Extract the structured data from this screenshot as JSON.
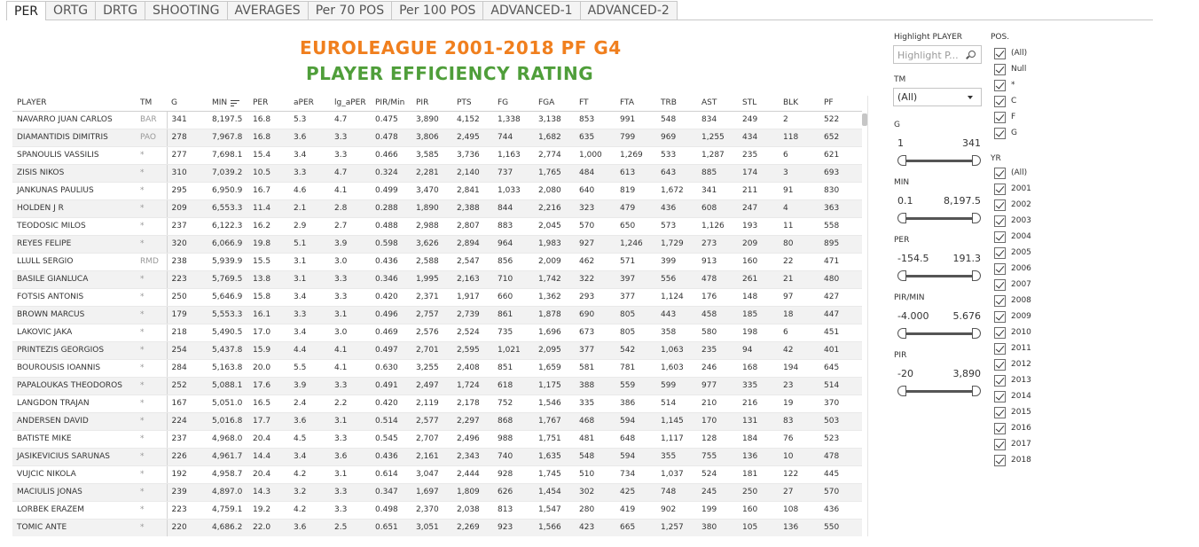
{
  "tabs": [
    {
      "label": "PER",
      "active": true
    },
    {
      "label": "ORTG",
      "active": false
    },
    {
      "label": "DRTG",
      "active": false
    },
    {
      "label": "SHOOTING",
      "active": false
    },
    {
      "label": "AVERAGES",
      "active": false
    },
    {
      "label": "Per 70 POS",
      "active": false
    },
    {
      "label": "Per 100 POS",
      "active": false
    },
    {
      "label": "ADVANCED-1",
      "active": false
    },
    {
      "label": "ADVANCED-2",
      "active": false
    }
  ],
  "title": {
    "line1": "EUROLEAGUE 2001-2018 PF G4",
    "line2": "PLAYER EFFICIENCY RATING",
    "line1_color": "#f07f1e",
    "line2_color": "#4f9e3a"
  },
  "table": {
    "columns": [
      "PLAYER",
      "TM",
      "G",
      "MIN",
      "PER",
      "aPER",
      "lg_aPER",
      "PIR/Min",
      "PIR",
      "PTS",
      "FG",
      "FGA",
      "FT",
      "FTA",
      "TRB",
      "AST",
      "STL",
      "BLK",
      "PF"
    ],
    "sorted_column": "MIN",
    "rows": [
      [
        "NAVARRO JUAN CARLOS",
        "BAR",
        "341",
        "8,197.5",
        "16.8",
        "5.3",
        "4.7",
        "0.475",
        "3,890",
        "4,152",
        "1,338",
        "3,138",
        "853",
        "991",
        "548",
        "834",
        "249",
        "2",
        "522"
      ],
      [
        "DIAMANTIDIS DIMITRIS",
        "PAO",
        "278",
        "7,967.8",
        "16.8",
        "3.6",
        "3.3",
        "0.478",
        "3,806",
        "2,495",
        "744",
        "1,682",
        "635",
        "799",
        "969",
        "1,255",
        "434",
        "118",
        "652"
      ],
      [
        "SPANOULIS VASSILIS",
        "*",
        "277",
        "7,698.1",
        "15.4",
        "3.4",
        "3.3",
        "0.466",
        "3,585",
        "3,736",
        "1,163",
        "2,774",
        "1,000",
        "1,269",
        "533",
        "1,287",
        "235",
        "6",
        "621"
      ],
      [
        "ZISIS NIKOS",
        "*",
        "310",
        "7,039.2",
        "10.5",
        "3.3",
        "4.7",
        "0.324",
        "2,281",
        "2,140",
        "737",
        "1,765",
        "484",
        "613",
        "643",
        "885",
        "174",
        "3",
        "693"
      ],
      [
        "JANKUNAS PAULIUS",
        "*",
        "295",
        "6,950.9",
        "16.7",
        "4.6",
        "4.1",
        "0.499",
        "3,470",
        "2,841",
        "1,033",
        "2,080",
        "640",
        "819",
        "1,672",
        "341",
        "211",
        "91",
        "830"
      ],
      [
        "HOLDEN J R",
        "*",
        "209",
        "6,553.3",
        "11.4",
        "2.1",
        "2.8",
        "0.288",
        "1,890",
        "2,388",
        "844",
        "2,216",
        "323",
        "479",
        "436",
        "608",
        "247",
        "4",
        "363"
      ],
      [
        "TEODOSIC MILOS",
        "*",
        "237",
        "6,122.3",
        "16.2",
        "2.9",
        "2.7",
        "0.488",
        "2,988",
        "2,807",
        "883",
        "2,045",
        "570",
        "650",
        "573",
        "1,126",
        "193",
        "11",
        "558"
      ],
      [
        "REYES FELIPE",
        "*",
        "320",
        "6,066.9",
        "19.8",
        "5.1",
        "3.9",
        "0.598",
        "3,626",
        "2,894",
        "964",
        "1,983",
        "927",
        "1,246",
        "1,729",
        "273",
        "209",
        "80",
        "895"
      ],
      [
        "LLULL SERGIO",
        "RMD",
        "238",
        "5,939.9",
        "15.5",
        "3.1",
        "3.0",
        "0.436",
        "2,588",
        "2,547",
        "856",
        "2,009",
        "462",
        "571",
        "399",
        "913",
        "160",
        "22",
        "471"
      ],
      [
        "BASILE GIANLUCA",
        "*",
        "223",
        "5,769.5",
        "13.8",
        "3.1",
        "3.3",
        "0.346",
        "1,995",
        "2,163",
        "710",
        "1,742",
        "322",
        "397",
        "556",
        "478",
        "261",
        "21",
        "480"
      ],
      [
        "FOTSIS ANTONIS",
        "*",
        "250",
        "5,646.9",
        "15.8",
        "3.4",
        "3.3",
        "0.420",
        "2,371",
        "1,917",
        "660",
        "1,362",
        "293",
        "377",
        "1,124",
        "176",
        "148",
        "97",
        "427"
      ],
      [
        "BROWN MARCUS",
        "*",
        "179",
        "5,553.3",
        "16.1",
        "3.3",
        "3.1",
        "0.496",
        "2,757",
        "2,739",
        "861",
        "1,878",
        "690",
        "805",
        "443",
        "458",
        "185",
        "18",
        "447"
      ],
      [
        "LAKOVIC JAKA",
        "*",
        "218",
        "5,490.5",
        "17.0",
        "3.4",
        "3.0",
        "0.469",
        "2,576",
        "2,524",
        "735",
        "1,696",
        "673",
        "805",
        "358",
        "580",
        "198",
        "6",
        "451"
      ],
      [
        "PRINTEZIS GEORGIOS",
        "*",
        "254",
        "5,437.8",
        "15.9",
        "4.4",
        "4.1",
        "0.497",
        "2,701",
        "2,595",
        "1,021",
        "2,095",
        "377",
        "542",
        "1,063",
        "235",
        "94",
        "42",
        "401"
      ],
      [
        "BOUROUSIS IOANNIS",
        "*",
        "284",
        "5,163.8",
        "20.0",
        "5.5",
        "4.1",
        "0.630",
        "3,255",
        "2,408",
        "851",
        "1,659",
        "581",
        "781",
        "1,603",
        "246",
        "168",
        "194",
        "645"
      ],
      [
        "PAPALOUKAS THEODOROS",
        "*",
        "252",
        "5,088.1",
        "17.6",
        "3.9",
        "3.3",
        "0.491",
        "2,497",
        "1,724",
        "618",
        "1,175",
        "388",
        "559",
        "599",
        "977",
        "335",
        "23",
        "514"
      ],
      [
        "LANGDON TRAJAN",
        "*",
        "167",
        "5,051.0",
        "16.5",
        "2.4",
        "2.2",
        "0.420",
        "2,119",
        "2,178",
        "752",
        "1,546",
        "335",
        "386",
        "514",
        "210",
        "216",
        "19",
        "370"
      ],
      [
        "ANDERSEN DAVID",
        "*",
        "224",
        "5,016.8",
        "17.7",
        "3.6",
        "3.1",
        "0.514",
        "2,577",
        "2,297",
        "868",
        "1,767",
        "468",
        "594",
        "1,145",
        "170",
        "131",
        "83",
        "503"
      ],
      [
        "BATISTE MIKE",
        "*",
        "237",
        "4,968.0",
        "20.4",
        "4.5",
        "3.3",
        "0.545",
        "2,707",
        "2,496",
        "988",
        "1,751",
        "481",
        "648",
        "1,117",
        "128",
        "184",
        "76",
        "523"
      ],
      [
        "JASIKEVICIUS SARUNAS",
        "*",
        "226",
        "4,961.7",
        "14.4",
        "3.4",
        "3.6",
        "0.436",
        "2,161",
        "2,343",
        "740",
        "1,635",
        "548",
        "594",
        "355",
        "755",
        "136",
        "10",
        "478"
      ],
      [
        "VUJCIC NIKOLA",
        "*",
        "192",
        "4,958.7",
        "20.4",
        "4.2",
        "3.1",
        "0.614",
        "3,047",
        "2,444",
        "928",
        "1,745",
        "510",
        "734",
        "1,037",
        "524",
        "181",
        "122",
        "445"
      ],
      [
        "MACIULIS JONAS",
        "*",
        "239",
        "4,897.0",
        "14.3",
        "3.2",
        "3.3",
        "0.347",
        "1,697",
        "1,809",
        "626",
        "1,454",
        "302",
        "425",
        "748",
        "245",
        "250",
        "27",
        "570"
      ],
      [
        "LORBEK ERAZEM",
        "*",
        "223",
        "4,759.1",
        "19.2",
        "4.2",
        "3.3",
        "0.498",
        "2,370",
        "2,038",
        "813",
        "1,547",
        "280",
        "419",
        "902",
        "199",
        "160",
        "108",
        "436"
      ],
      [
        "TOMIC ANTE",
        "*",
        "220",
        "4,686.2",
        "22.0",
        "3.6",
        "2.5",
        "0.651",
        "3,051",
        "2,269",
        "923",
        "1,566",
        "423",
        "665",
        "1,257",
        "380",
        "105",
        "136",
        "550"
      ]
    ]
  },
  "filters": {
    "highlight": {
      "label": "Highlight PLAYER",
      "placeholder": "Highlight P..."
    },
    "tm": {
      "label": "TM",
      "value": "(All)"
    },
    "ranges": [
      {
        "label": "G",
        "min": "1",
        "max": "341"
      },
      {
        "label": "MIN",
        "min": "0.1",
        "max": "8,197.5"
      },
      {
        "label": "PER",
        "min": "-154.5",
        "max": "191.3"
      },
      {
        "label": "PIR/MIN",
        "min": "-4.000",
        "max": "5.676"
      },
      {
        "label": "PIR",
        "min": "-20",
        "max": "3,890"
      }
    ],
    "pos": {
      "label": "POS.",
      "options": [
        "(All)",
        "Null",
        "*",
        "C",
        "F",
        "G"
      ]
    },
    "yr": {
      "label": "YR",
      "options": [
        "(All)",
        "2001",
        "2002",
        "2003",
        "2004",
        "2005",
        "2006",
        "2007",
        "2008",
        "2009",
        "2010",
        "2011",
        "2012",
        "2013",
        "2014",
        "2015",
        "2016",
        "2017",
        "2018"
      ]
    }
  }
}
